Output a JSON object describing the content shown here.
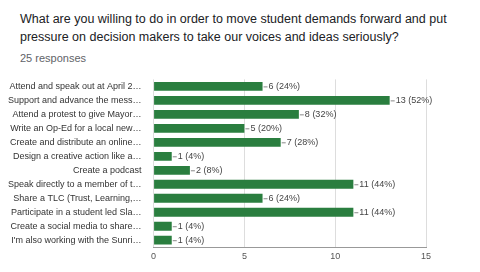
{
  "chart_data": {
    "type": "bar",
    "orientation": "horizontal",
    "title": "What are you willing to do in order to move student demands forward and put pressure on decision makers to take our voices and ideas seriously?",
    "subtitle": "25 responses",
    "categories": [
      "Attend and speak out at April 2…",
      "Support and advance the mess…",
      "Attend a protest to give Mayor…",
      "Write an Op-Ed for a local new…",
      "Create and distribute an online…",
      "Design a creative action like a…",
      "Create a podcast",
      "Speak directly to a member of t…",
      "Share a TLC (Trust, Learning,…",
      "Participate in a student led Sla…",
      "Create a social media to share…",
      "I'm also working with the Sunri…"
    ],
    "values": [
      6,
      13,
      8,
      5,
      7,
      1,
      2,
      11,
      6,
      11,
      1,
      1
    ],
    "value_labels": [
      "6 (24%)",
      "13 (52%)",
      "8 (32%)",
      "5 (20%)",
      "7 (28%)",
      "1 (4%)",
      "2 (8%)",
      "11 (44%)",
      "6 (24%)",
      "11 (44%)",
      "1 (4%)",
      "1 (4%)"
    ],
    "data_labels": true,
    "color": "#2a7e3f",
    "xlim": [
      0,
      15
    ],
    "xticks": [
      0,
      5,
      10,
      15
    ],
    "grid": true
  }
}
